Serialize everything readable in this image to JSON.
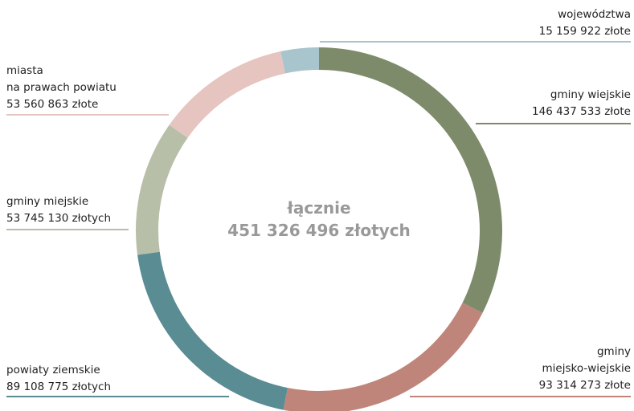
{
  "chart_data": {
    "type": "donut",
    "center_title": "łącznie",
    "center_label": "451 326 496 złotych",
    "series": [
      {
        "name": "gminy wiejskie",
        "color": "#7d8b6a",
        "value": 146437533,
        "value_label": "146 437 533 złote"
      },
      {
        "name": "gminy\nmiejsko-wiejskie",
        "color": "#bf857b",
        "value": 93314273,
        "value_label": "93 314 273 złote"
      },
      {
        "name": "powiaty ziemskie",
        "color": "#5a8c93",
        "value": 89108775,
        "value_label": "89 108 775 złotych"
      },
      {
        "name": "gminy miejskie",
        "color": "#b8bfa8",
        "value": 53745130,
        "value_label": "53 745 130 złotych"
      },
      {
        "name": "miasta\nna prawach powiatu",
        "color": "#e6c4bf",
        "value": 53560863,
        "value_label": "53 560 863 złote"
      },
      {
        "name": "województwa",
        "color": "#a8c4cc",
        "value": 15159922,
        "value_label": "15 159 922 złote"
      }
    ]
  }
}
